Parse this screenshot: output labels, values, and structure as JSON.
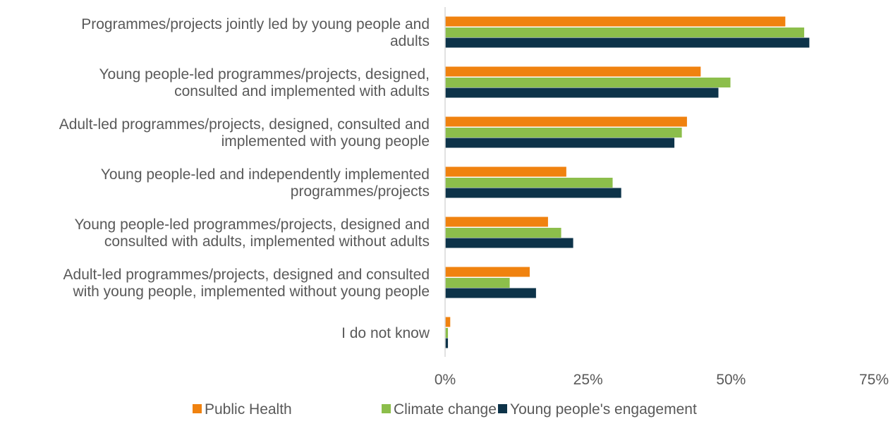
{
  "chart_data": {
    "type": "bar",
    "orientation": "horizontal",
    "categories": [
      [
        "Programmes/projects jointly led by young people and",
        "adults"
      ],
      [
        "Young people-led programmes/projects, designed,",
        "consulted and implemented with adults"
      ],
      [
        "Adult-led programmes/projects, designed, consulted and",
        "implemented with young people"
      ],
      [
        "Young people-led and independently implemented",
        "programmes/projects"
      ],
      [
        "Young people-led programmes/projects, designed and",
        "consulted with adults, implemented without adults"
      ],
      [
        "Adult-led programmes/projects, designed and consulted",
        "with young people, implemented without young people"
      ],
      [
        "I do not know"
      ]
    ],
    "series": [
      {
        "name": "Public Health",
        "color": "#F0820F",
        "values": [
          59.5,
          44.7,
          42.3,
          21.2,
          18.0,
          14.8,
          0.9
        ]
      },
      {
        "name": "Climate change",
        "color": "#8CBE4B",
        "values": [
          62.8,
          49.9,
          41.4,
          29.3,
          20.3,
          11.3,
          0.5
        ]
      },
      {
        "name": "Young people's engagement",
        "color": "#0D3349",
        "values": [
          63.7,
          47.8,
          40.1,
          30.8,
          22.4,
          15.9,
          0.5
        ]
      }
    ],
    "xlim": [
      0,
      75
    ],
    "xticks": [
      0,
      25,
      50,
      75
    ],
    "xtick_labels": [
      "0%",
      "25%",
      "50%",
      "75%"
    ],
    "legend_position": "bottom",
    "grid": false,
    "title": "",
    "xlabel": "",
    "ylabel": ""
  }
}
